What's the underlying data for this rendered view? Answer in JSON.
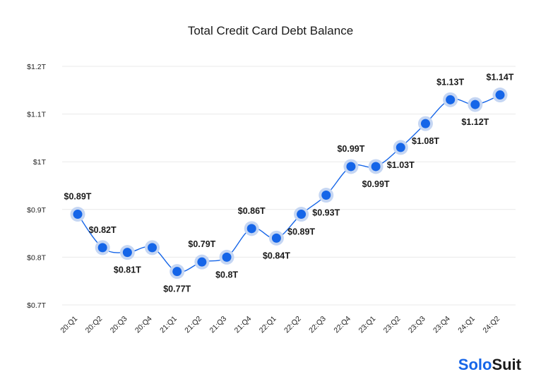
{
  "chart_data": {
    "type": "line",
    "title": "Total Credit Card Debt Balance",
    "xlabel": "",
    "ylabel": "",
    "categories": [
      "20:Q1",
      "20:Q2",
      "20:Q3",
      "20:Q4",
      "21:Q1",
      "21:Q2",
      "21:Q3",
      "21:Q4",
      "22:Q1",
      "22:Q2",
      "22:Q3",
      "22:Q4",
      "23:Q1",
      "23:Q2",
      "23:Q3",
      "23:Q4",
      "24:Q1",
      "24:Q2"
    ],
    "values": [
      0.89,
      0.82,
      0.81,
      0.82,
      0.77,
      0.79,
      0.8,
      0.86,
      0.84,
      0.89,
      0.93,
      0.99,
      0.99,
      1.03,
      1.08,
      1.13,
      1.12,
      1.14
    ],
    "data_labels": [
      "$0.89T",
      "$0.82T",
      "$0.81T",
      "",
      "$0.77T",
      "$0.79T",
      "$0.8T",
      "$0.86T",
      "$0.84T",
      "$0.89T",
      "$0.93T",
      "$0.99T",
      "$0.99T",
      "$1.03T",
      "$1.08T",
      "$1.13T",
      "$1.12T",
      "$1.14T"
    ],
    "label_position": [
      "above",
      "above",
      "below",
      "",
      "below",
      "above",
      "below",
      "above",
      "below",
      "below",
      "below",
      "above",
      "below",
      "below",
      "below",
      "above",
      "below",
      "above"
    ],
    "ylim": [
      0.7,
      1.2
    ],
    "yticks": [
      0.7,
      0.8,
      0.9,
      1.0,
      1.1,
      1.2
    ],
    "ytick_labels": [
      "$0.7T",
      "$0.8T",
      "$0.9T",
      "$1T",
      "$1.1T",
      "$1.2T"
    ],
    "grid": true,
    "line_color": "#1565e8",
    "marker_color": "#1565e8",
    "marker_halo_color": "#c5d6f3"
  },
  "brand": {
    "part1": "Solo",
    "part2": "Suit",
    "color1": "#1565e8",
    "color2": "#1a1a1a"
  }
}
